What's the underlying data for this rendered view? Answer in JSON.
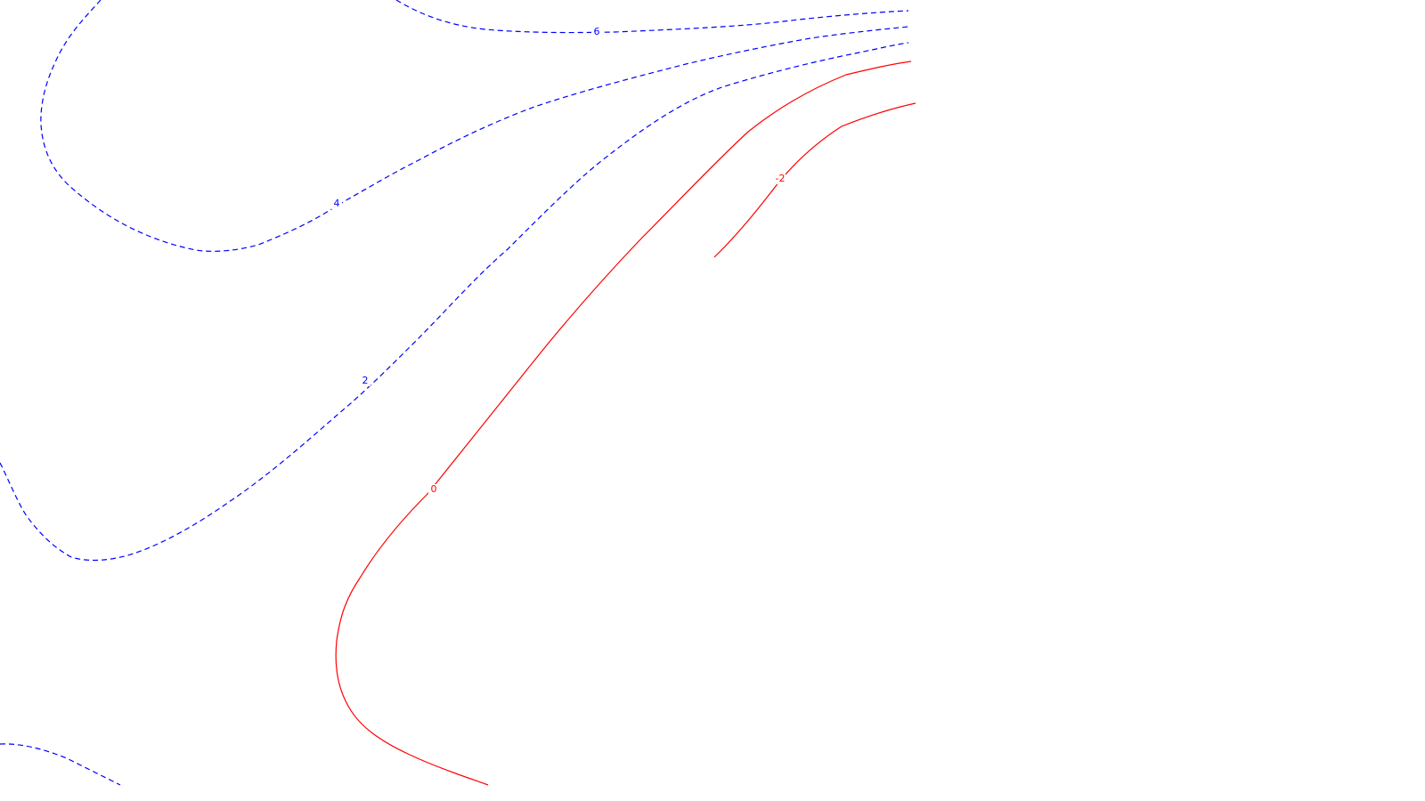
{
  "chart_data": {
    "type": "contour",
    "title": "",
    "xlabel": "",
    "ylabel": "",
    "colors": {
      "positive": "#0000ff",
      "zero": "#ff0000",
      "negative": "#ff0000",
      "background": "#ffffff"
    },
    "levels": [
      {
        "id": "level-6",
        "value": 6,
        "label": "6",
        "style": "dashed",
        "color": "#0000ff"
      },
      {
        "id": "level-4",
        "value": 4,
        "label": "4",
        "style": "dashed",
        "color": "#0000ff"
      },
      {
        "id": "level-2",
        "value": 2,
        "label": "2",
        "style": "dashed",
        "color": "#0000ff"
      },
      {
        "id": "level-0",
        "value": 0,
        "label": "0",
        "style": "solid",
        "color": "#ff0000"
      },
      {
        "id": "level-neg2",
        "value": -2,
        "label": "-2",
        "style": "solid",
        "color": "#ff0000"
      }
    ]
  }
}
